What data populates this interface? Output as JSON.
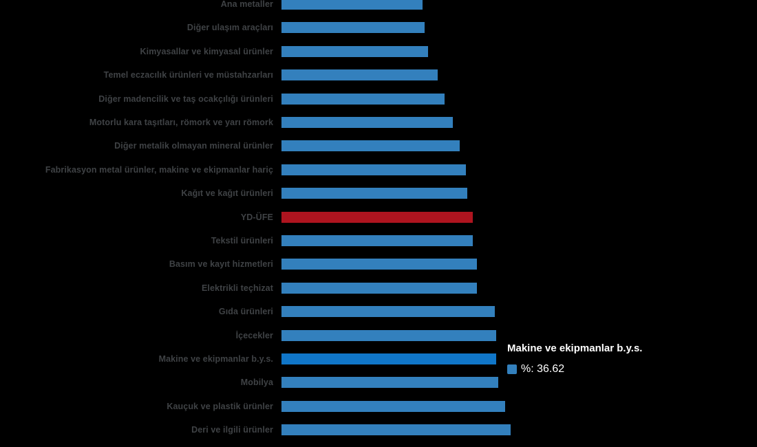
{
  "chart_data": {
    "type": "bar",
    "orientation": "horizontal",
    "title": "",
    "xlabel": "",
    "ylabel": "",
    "unit": "%",
    "grid": false,
    "legend": "none",
    "xlim": [
      0,
      43.5
    ],
    "categories": [
      "Ana metaller",
      "Diğer ulaşım araçları",
      "Kimyasallar ve kimyasal ürünler",
      "Temel eczacılık ürünleri ve müstahzarları",
      "Diğer madencilik ve taş ocakçılığı ürünleri",
      "Motorlu kara taşıtları, römork ve yarı römork",
      "Diğer metalik olmayan mineral ürünler",
      "Fabrikasyon metal ürünler, makine ve ekipmanlar hariç",
      "Kağıt ve kağıt ürünleri",
      "YD-ÜFE",
      "Tekstil ürünleri",
      "Basım ve kayıt hizmetleri",
      "Elektrikli teçhizat",
      "Gıda ürünleri",
      "İçecekler",
      "Makine ve ekipmanlar b.y.s.",
      "Mobilya",
      "Kauçuk ve plastik ürünler",
      "Deri ve ilgili ürünler"
    ],
    "values": [
      24.06,
      24.41,
      25.01,
      26.64,
      27.82,
      29.23,
      30.4,
      31.46,
      31.69,
      32.63,
      32.63,
      33.33,
      33.33,
      36.38,
      36.62,
      36.62,
      36.97,
      38.15,
      39.08
    ],
    "value_precision_note": "only 36.62 is shown on screen (tooltip); other values estimated from bar lengths",
    "highlight_category": "YD-ÜFE",
    "hovered_category": "Makine ve ekipmanlar b.y.s.",
    "colors": {
      "default": "#3380BD",
      "highlight": "#AE141F",
      "hover": "#1076C8"
    },
    "label_color": "#3F4245"
  },
  "tooltip": {
    "title": "Makine ve ekipmanlar b.y.s.",
    "series_label": "%",
    "value": "36.62",
    "text": "%: 36.62",
    "marker_color": "#3380BD",
    "text_color": "#FFFFFF"
  }
}
